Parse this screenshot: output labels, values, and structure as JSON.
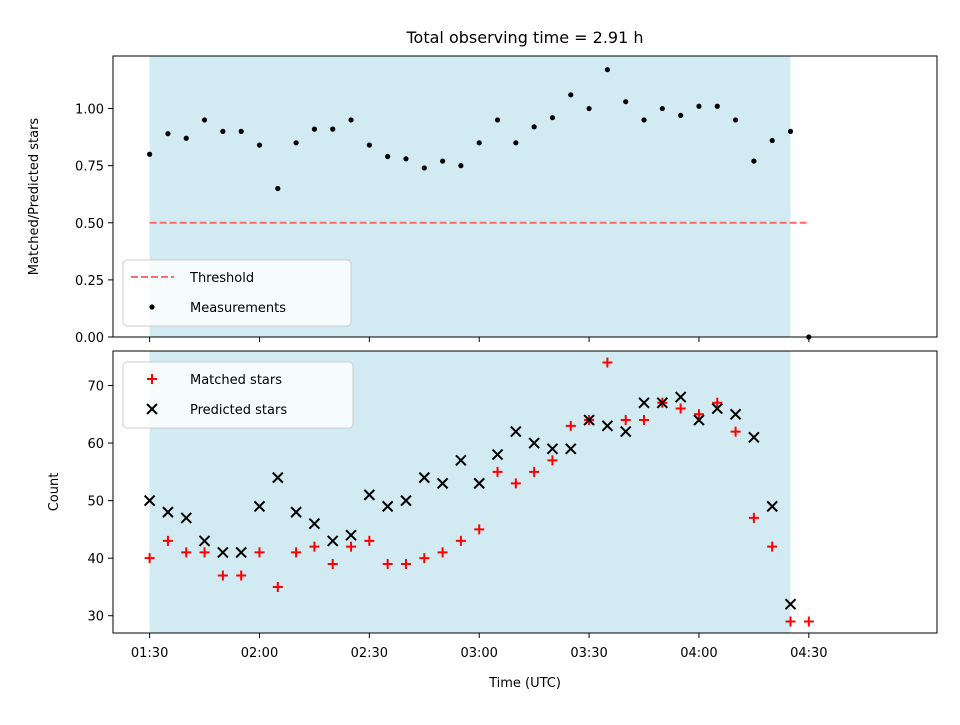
{
  "title": "Total observing time = 2.91 h",
  "colors": {
    "shade": "#add8e6",
    "threshold": "#ff6b6b",
    "matched": "#ff0000",
    "predicted": "#000000",
    "measurement": "#000000"
  },
  "chart_data": [
    {
      "type": "scatter",
      "ylabel": "Matched/Predicted stars",
      "ylim": [
        0.0,
        1.23
      ],
      "yticks": [
        0.0,
        0.25,
        0.5,
        0.75,
        1.0
      ],
      "ytick_labels": [
        "0.00",
        "0.25",
        "0.50",
        "0.75",
        "1.00"
      ],
      "xticks": [
        "01:30",
        "02:00",
        "02:30",
        "03:00",
        "03:30",
        "04:00",
        "04:30"
      ],
      "shaded_span": [
        "01:30",
        "04:25"
      ],
      "legend_position": "lower-left",
      "threshold": {
        "name": "Threshold",
        "value": 0.5,
        "x_range": [
          "01:30",
          "04:30"
        ]
      },
      "series": [
        {
          "name": "Measurements",
          "x": [
            "01:30",
            "01:35",
            "01:40",
            "01:45",
            "01:50",
            "01:55",
            "02:00",
            "02:05",
            "02:10",
            "02:15",
            "02:20",
            "02:25",
            "02:30",
            "02:35",
            "02:40",
            "02:45",
            "02:50",
            "02:55",
            "03:00",
            "03:05",
            "03:10",
            "03:15",
            "03:20",
            "03:25",
            "03:30",
            "03:35",
            "03:40",
            "03:45",
            "03:50",
            "03:55",
            "04:00",
            "04:05",
            "04:10",
            "04:15",
            "04:20",
            "04:25",
            "04:30"
          ],
          "y": [
            0.8,
            0.89,
            0.87,
            0.95,
            0.9,
            0.9,
            0.84,
            0.65,
            0.85,
            0.91,
            0.91,
            0.95,
            0.84,
            0.79,
            0.78,
            0.74,
            0.77,
            0.75,
            0.85,
            0.95,
            0.85,
            0.92,
            0.96,
            1.06,
            1.0,
            1.17,
            1.03,
            0.95,
            1.0,
            0.97,
            1.01,
            1.01,
            0.95,
            0.77,
            0.86,
            0.9,
            0.0
          ]
        }
      ]
    },
    {
      "type": "scatter",
      "xlabel": "Time (UTC)",
      "ylabel": "Count",
      "ylim": [
        27,
        76
      ],
      "yticks": [
        30,
        40,
        50,
        60,
        70
      ],
      "ytick_labels": [
        "30",
        "40",
        "50",
        "60",
        "70"
      ],
      "xticks": [
        "01:30",
        "02:00",
        "02:30",
        "03:00",
        "03:30",
        "04:00",
        "04:30"
      ],
      "shaded_span": [
        "01:30",
        "04:25"
      ],
      "legend_position": "upper-left",
      "series": [
        {
          "name": "Matched stars",
          "marker": "plus",
          "x": [
            "01:30",
            "01:35",
            "01:40",
            "01:45",
            "01:50",
            "01:55",
            "02:00",
            "02:05",
            "02:10",
            "02:15",
            "02:20",
            "02:25",
            "02:30",
            "02:35",
            "02:40",
            "02:45",
            "02:50",
            "02:55",
            "03:00",
            "03:05",
            "03:10",
            "03:15",
            "03:20",
            "03:25",
            "03:30",
            "03:35",
            "03:40",
            "03:45",
            "03:50",
            "03:55",
            "04:00",
            "04:05",
            "04:10",
            "04:15",
            "04:20",
            "04:25",
            "04:30"
          ],
          "y": [
            40,
            43,
            41,
            41,
            37,
            37,
            41,
            35,
            41,
            42,
            39,
            42,
            43,
            39,
            39,
            40,
            41,
            43,
            45,
            55,
            53,
            55,
            57,
            63,
            64,
            74,
            64,
            64,
            67,
            66,
            65,
            67,
            62,
            47,
            42,
            29,
            29
          ]
        },
        {
          "name": "Predicted stars",
          "marker": "x",
          "x": [
            "01:30",
            "01:35",
            "01:40",
            "01:45",
            "01:50",
            "01:55",
            "02:00",
            "02:05",
            "02:10",
            "02:15",
            "02:20",
            "02:25",
            "02:30",
            "02:35",
            "02:40",
            "02:45",
            "02:50",
            "02:55",
            "03:00",
            "03:05",
            "03:10",
            "03:15",
            "03:20",
            "03:25",
            "03:30",
            "03:35",
            "03:40",
            "03:45",
            "03:50",
            "03:55",
            "04:00",
            "04:05",
            "04:10",
            "04:15",
            "04:20",
            "04:25"
          ],
          "y": [
            50,
            48,
            47,
            43,
            41,
            41,
            49,
            54,
            48,
            46,
            43,
            44,
            51,
            49,
            50,
            54,
            53,
            57,
            53,
            58,
            62,
            60,
            59,
            59,
            64,
            63,
            62,
            67,
            67,
            68,
            64,
            66,
            65,
            61,
            49,
            32
          ]
        }
      ]
    }
  ]
}
